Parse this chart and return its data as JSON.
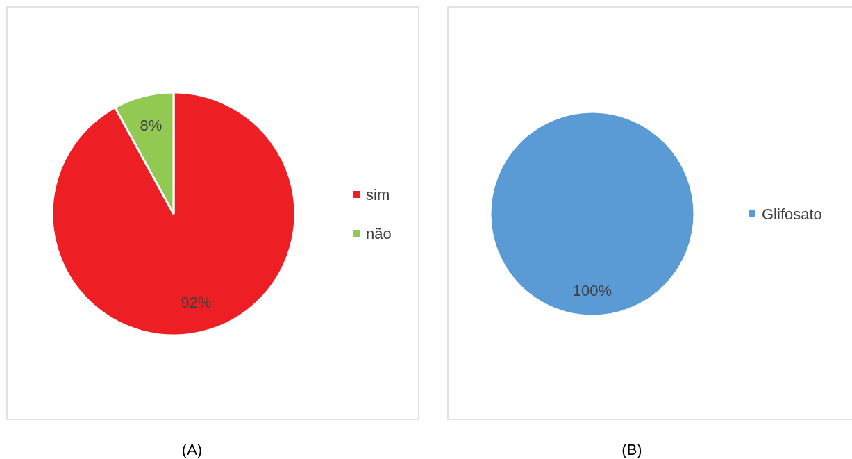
{
  "chart_data": [
    {
      "type": "pie",
      "categories": [
        "sim",
        "não"
      ],
      "values": [
        92,
        8
      ],
      "colors": [
        "#ed1f24",
        "#92c953"
      ],
      "value_labels": [
        "92%",
        "8%"
      ],
      "legend": "right",
      "annotations": [
        "(A)"
      ]
    },
    {
      "type": "pie",
      "categories": [
        "Glifosato"
      ],
      "values": [
        100
      ],
      "colors": [
        "#5b9bd5"
      ],
      "value_labels": [
        "100%"
      ],
      "legend": "right",
      "annotations": [
        "(B)"
      ]
    }
  ]
}
